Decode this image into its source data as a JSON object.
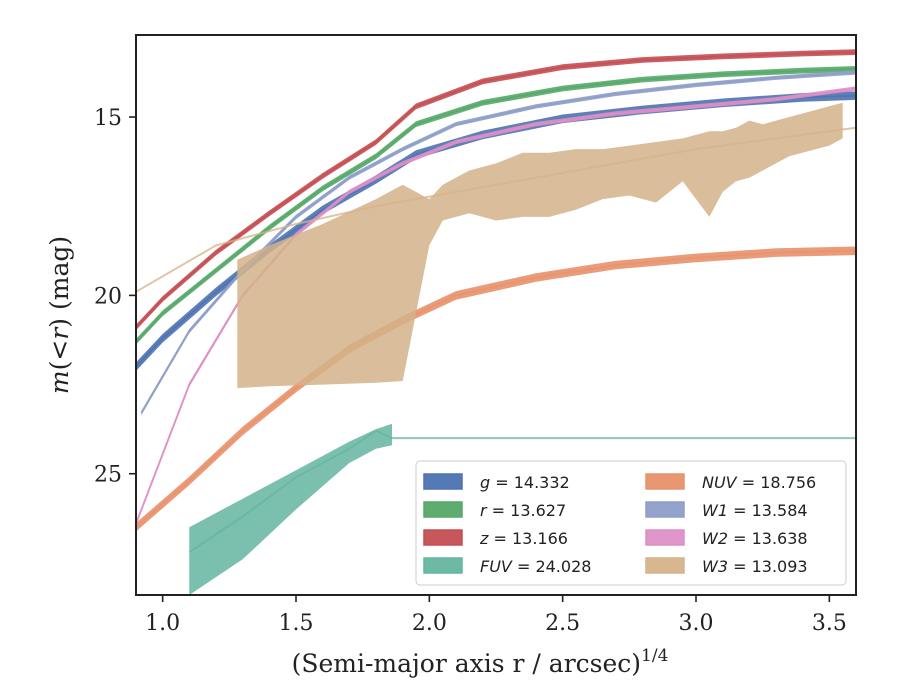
{
  "chart_data": {
    "type": "line",
    "xlabel": "(Semi-major axis r / arcsec)",
    "xlabel_sup": "1/4",
    "ylabel_parts": [
      "m",
      "(<",
      "r",
      ") (mag)"
    ],
    "xlim": [
      0.9,
      3.6
    ],
    "ylim": [
      28.4,
      12.7
    ],
    "y_inverted": true,
    "x_ticks": [
      1.0,
      1.5,
      2.0,
      2.5,
      3.0,
      3.5
    ],
    "y_ticks": [
      15,
      20,
      25
    ],
    "legend_position": "lower-right",
    "series": [
      {
        "key": "g",
        "name_symbol": "g",
        "name_value": "= 14.332",
        "color": "#4c72b0",
        "x": [
          0.9,
          1.0,
          1.2,
          1.4,
          1.6,
          1.8,
          1.95,
          2.2,
          2.5,
          2.8,
          3.1,
          3.4,
          3.6
        ],
        "y": [
          22.0,
          21.2,
          19.9,
          18.7,
          17.6,
          16.75,
          16.05,
          15.5,
          15.05,
          14.8,
          14.6,
          14.45,
          14.4
        ],
        "band": 0.12
      },
      {
        "key": "r",
        "name_symbol": "r",
        "name_value": "= 13.627",
        "color": "#55a868",
        "x": [
          0.9,
          1.0,
          1.2,
          1.4,
          1.6,
          1.8,
          1.95,
          2.2,
          2.5,
          2.8,
          3.1,
          3.4,
          3.6
        ],
        "y": [
          21.3,
          20.5,
          19.3,
          18.1,
          17.0,
          16.1,
          15.2,
          14.6,
          14.2,
          13.95,
          13.8,
          13.7,
          13.65
        ],
        "band": 0.08
      },
      {
        "key": "z",
        "name_symbol": "z",
        "name_value": "= 13.166",
        "color": "#c44e52",
        "x": [
          0.9,
          1.0,
          1.2,
          1.4,
          1.6,
          1.8,
          1.95,
          2.2,
          2.5,
          2.8,
          3.1,
          3.4,
          3.6
        ],
        "y": [
          20.9,
          20.1,
          18.8,
          17.7,
          16.65,
          15.7,
          14.7,
          14.0,
          13.6,
          13.4,
          13.3,
          13.22,
          13.18
        ],
        "band": 0.08
      },
      {
        "key": "FUV",
        "name_symbol": "FUV",
        "name_value": "= 24.028",
        "color": "#64b5a0",
        "x": [
          1.1,
          1.3,
          1.5,
          1.7,
          1.8,
          1.86,
          2.0,
          2.5,
          3.0,
          3.6
        ],
        "y": [
          27.2,
          26.2,
          25.1,
          24.3,
          23.8,
          24.0,
          24.0,
          24.0,
          24.0,
          24.0
        ],
        "band_upper": [
          26.5,
          25.7,
          24.9,
          24.1,
          23.75,
          23.6
        ],
        "band_lower": [
          28.4,
          27.4,
          26.0,
          24.7,
          24.3,
          24.2
        ]
      },
      {
        "key": "NUV",
        "name_symbol": "NUV",
        "name_value": "= 18.756",
        "color": "#e8916b",
        "x": [
          0.9,
          1.1,
          1.3,
          1.5,
          1.7,
          1.9,
          2.1,
          2.4,
          2.7,
          3.0,
          3.3,
          3.6
        ],
        "y": [
          26.5,
          25.2,
          23.8,
          22.6,
          21.5,
          20.7,
          20.0,
          19.5,
          19.15,
          18.95,
          18.8,
          18.75
        ],
        "band": 0.12
      },
      {
        "key": "W1",
        "name_symbol": "W1",
        "name_value": "= 13.584",
        "color": "#8d9ec8",
        "x": [
          0.92,
          1.1,
          1.3,
          1.5,
          1.7,
          1.9,
          2.1,
          2.4,
          2.7,
          3.0,
          3.3,
          3.6
        ],
        "y": [
          23.3,
          21.0,
          19.3,
          17.8,
          16.7,
          15.9,
          15.2,
          14.7,
          14.35,
          14.1,
          13.9,
          13.75
        ],
        "band": 0.06
      },
      {
        "key": "W2",
        "name_symbol": "W2",
        "name_value": "= 13.638",
        "color": "#dd8fc5",
        "x": [
          0.9,
          1.1,
          1.3,
          1.5,
          1.7,
          1.9,
          2.1,
          2.4,
          2.7,
          3.0,
          3.3,
          3.6
        ],
        "y": [
          26.4,
          22.5,
          20.0,
          18.3,
          17.1,
          16.3,
          15.7,
          15.2,
          14.9,
          14.7,
          14.5,
          14.2
        ],
        "band": 0.06
      },
      {
        "key": "W3",
        "name_symbol": "W3",
        "name_value": "= 13.093",
        "color": "#d4b38a",
        "x": [
          0.9,
          1.2,
          1.5,
          1.8,
          2.1,
          2.4,
          2.7,
          3.0,
          3.3,
          3.6
        ],
        "y": [
          19.9,
          18.6,
          18.0,
          17.5,
          17.1,
          16.7,
          16.3,
          15.9,
          15.6,
          15.3
        ],
        "band_x": [
          1.28,
          1.4,
          1.6,
          1.8,
          1.9,
          1.95,
          2.0,
          2.05,
          2.15,
          2.25,
          2.35,
          2.45,
          2.55,
          2.65,
          2.75,
          2.85,
          2.95,
          3.05,
          3.1,
          3.15,
          3.2,
          3.25,
          3.35,
          3.45,
          3.5,
          3.55
        ],
        "band_upper": [
          19.0,
          18.6,
          18.0,
          17.3,
          16.9,
          17.1,
          17.3,
          16.9,
          16.5,
          16.3,
          16.0,
          16.0,
          15.9,
          15.9,
          15.8,
          15.7,
          15.6,
          15.4,
          15.4,
          15.3,
          15.1,
          15.2,
          15.0,
          14.8,
          14.7,
          14.6
        ],
        "band_lower": [
          22.6,
          22.55,
          22.5,
          22.45,
          22.4,
          20.5,
          18.6,
          17.9,
          17.7,
          17.9,
          17.8,
          17.8,
          17.6,
          17.3,
          17.2,
          17.4,
          16.8,
          17.8,
          17.1,
          16.8,
          16.7,
          16.5,
          16.1,
          15.9,
          15.8,
          15.6
        ]
      }
    ]
  }
}
